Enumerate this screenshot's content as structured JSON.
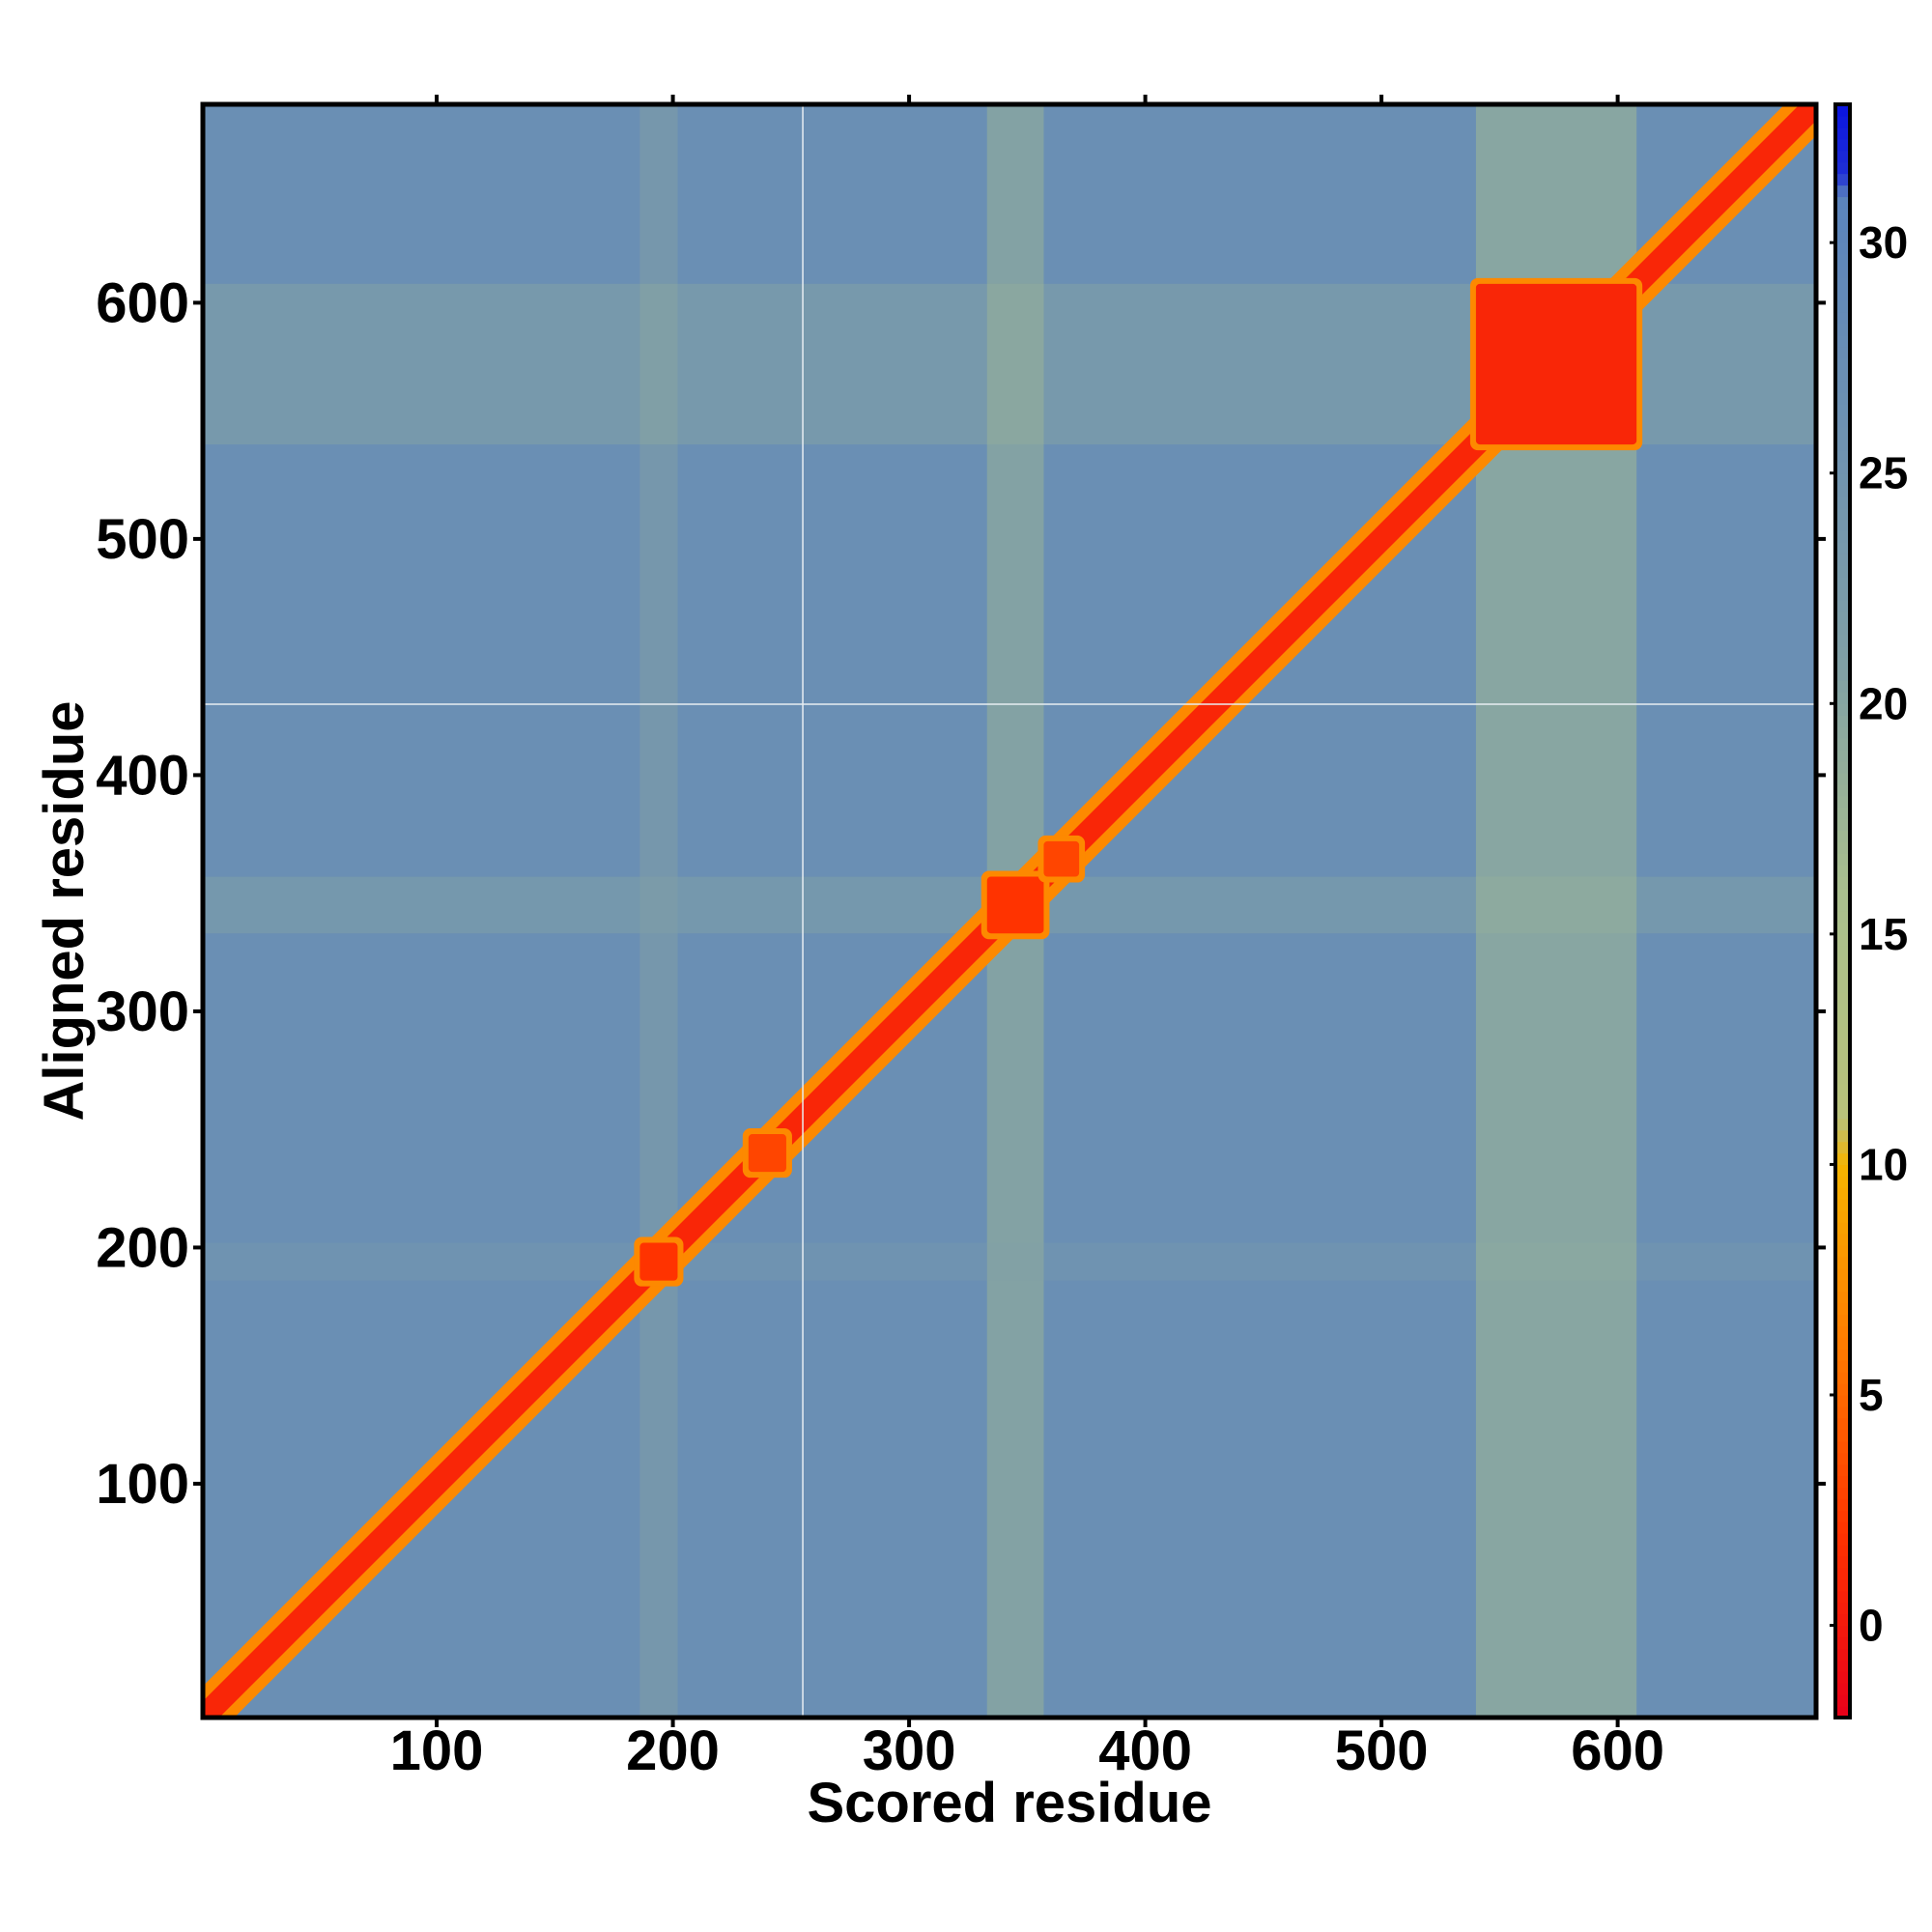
{
  "chart_data": {
    "type": "heatmap",
    "title": "",
    "xlabel": "Scored residue",
    "ylabel": "Aligned residue",
    "xlim": [
      1,
      684
    ],
    "ylim": [
      1,
      684
    ],
    "x_ticks": [
      100,
      200,
      300,
      400,
      500,
      600
    ],
    "y_ticks": [
      100,
      200,
      300,
      400,
      500,
      600
    ],
    "colorbar": {
      "range": [
        -2,
        33
      ],
      "ticks": [
        0,
        5,
        10,
        15,
        20,
        25,
        30
      ],
      "stops": [
        {
          "value": -2,
          "color": "#e8001a"
        },
        {
          "value": 2,
          "color": "#ff3300"
        },
        {
          "value": 6,
          "color": "#ff7a00"
        },
        {
          "value": 10,
          "color": "#f5b400"
        },
        {
          "value": 11,
          "color": "#b9c27a"
        },
        {
          "value": 16,
          "color": "#a9bf8e"
        },
        {
          "value": 21,
          "color": "#7f9fa6"
        },
        {
          "value": 27,
          "color": "#6a8fb4"
        },
        {
          "value": 31,
          "color": "#5b84bc"
        },
        {
          "value": 31.5,
          "color": "#1f2fd6"
        },
        {
          "value": 33,
          "color": "#0a14e0"
        }
      ]
    },
    "background_value": 27,
    "diagonal_value": 1,
    "low_error_blocks": [
      {
        "start": 540,
        "end": 608,
        "value": 1
      },
      {
        "start": 333,
        "end": 357,
        "value": 2
      },
      {
        "start": 357,
        "end": 372,
        "value": 3
      },
      {
        "start": 186,
        "end": 202,
        "value": 2
      },
      {
        "start": 232,
        "end": 248,
        "value": 3
      }
    ],
    "elevated_bands": [
      {
        "start": 333,
        "end": 357,
        "value": 18
      },
      {
        "start": 186,
        "end": 202,
        "value": 21
      },
      {
        "start": 540,
        "end": 608,
        "value": 17
      }
    ],
    "gap_lines": {
      "x": 255,
      "y": 430
    },
    "grid": false
  }
}
